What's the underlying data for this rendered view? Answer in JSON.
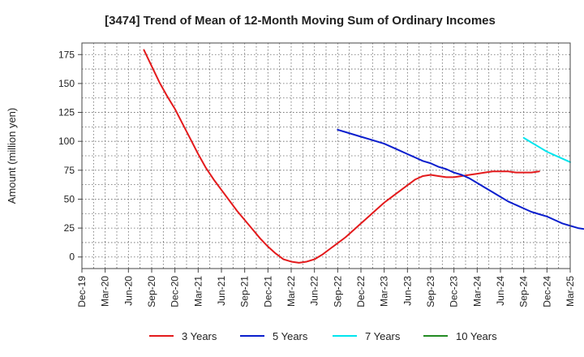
{
  "chart_data": {
    "type": "line",
    "title": "[3474]  Trend of Mean of 12-Month Moving Sum of Ordinary Incomes",
    "xlabel": "",
    "ylabel": "Amount (million yen)",
    "x_ticks": [
      "Dec-19",
      "Mar-20",
      "Jun-20",
      "Sep-20",
      "Dec-20",
      "Mar-21",
      "Jun-21",
      "Sep-21",
      "Dec-21",
      "Mar-22",
      "Jun-22",
      "Sep-22",
      "Dec-22",
      "Mar-23",
      "Jun-23",
      "Sep-23",
      "Dec-23",
      "Mar-24",
      "Jun-24",
      "Sep-24",
      "Dec-24",
      "Mar-25"
    ],
    "y_ticks": [
      0,
      25,
      50,
      75,
      100,
      125,
      150,
      175
    ],
    "ylim": [
      -10,
      185
    ],
    "grid": true,
    "legend_position": "bottom",
    "series": [
      {
        "name": "3 Years",
        "color": "#e31a1c",
        "points": [
          [
            8,
            179
          ],
          [
            9,
            165
          ],
          [
            10,
            151
          ],
          [
            11,
            139
          ],
          [
            12,
            128
          ],
          [
            13,
            115
          ],
          [
            14,
            102
          ],
          [
            15,
            89
          ],
          [
            16,
            77
          ],
          [
            17,
            67
          ],
          [
            18,
            58
          ],
          [
            19,
            49
          ],
          [
            20,
            40
          ],
          [
            21,
            32
          ],
          [
            22,
            24
          ],
          [
            23,
            16
          ],
          [
            24,
            9
          ],
          [
            25,
            3
          ],
          [
            26,
            -2
          ],
          [
            27,
            -4
          ],
          [
            28,
            -5
          ],
          [
            29,
            -4
          ],
          [
            30,
            -2
          ],
          [
            31,
            2
          ],
          [
            32,
            7
          ],
          [
            33,
            12
          ],
          [
            34,
            17
          ],
          [
            35,
            23
          ],
          [
            36,
            29
          ],
          [
            37,
            35
          ],
          [
            38,
            41
          ],
          [
            39,
            47
          ],
          [
            40,
            52
          ],
          [
            41,
            57
          ],
          [
            42,
            62
          ],
          [
            43,
            67
          ],
          [
            44,
            70
          ],
          [
            45,
            71
          ],
          [
            46,
            70
          ],
          [
            47,
            69
          ],
          [
            48,
            69
          ],
          [
            49,
            70
          ],
          [
            50,
            71
          ],
          [
            51,
            72
          ],
          [
            52,
            73
          ],
          [
            53,
            74
          ],
          [
            54,
            74
          ],
          [
            55,
            74
          ],
          [
            56,
            73
          ],
          [
            57,
            73
          ],
          [
            58,
            73
          ],
          [
            59,
            74
          ]
        ]
      },
      {
        "name": "5 Years",
        "color": "#0a1ecd",
        "points": [
          [
            33,
            110
          ],
          [
            34,
            108
          ],
          [
            35,
            106
          ],
          [
            36,
            104
          ],
          [
            37,
            102
          ],
          [
            38,
            100
          ],
          [
            39,
            98
          ],
          [
            40,
            95
          ],
          [
            41,
            92
          ],
          [
            42,
            89
          ],
          [
            43,
            86
          ],
          [
            44,
            83
          ],
          [
            45,
            81
          ],
          [
            46,
            78
          ],
          [
            47,
            76
          ],
          [
            48,
            73
          ],
          [
            49,
            71
          ],
          [
            50,
            68
          ],
          [
            51,
            64
          ],
          [
            52,
            60
          ],
          [
            53,
            56
          ],
          [
            54,
            52
          ],
          [
            55,
            48
          ],
          [
            56,
            45
          ],
          [
            57,
            42
          ],
          [
            58,
            39
          ],
          [
            59,
            37
          ],
          [
            60,
            35
          ],
          [
            61,
            32
          ],
          [
            62,
            29
          ],
          [
            63,
            27
          ],
          [
            64,
            25
          ],
          [
            65,
            24
          ],
          [
            66,
            24
          ]
        ]
      },
      {
        "name": "7 Years",
        "color": "#00e5ee",
        "points": [
          [
            57,
            103
          ],
          [
            58,
            99
          ],
          [
            59,
            95
          ],
          [
            60,
            91
          ],
          [
            61,
            88
          ],
          [
            62,
            85
          ],
          [
            63,
            82
          ]
        ]
      },
      {
        "name": "10 Years",
        "color": "#228b22",
        "points": []
      }
    ]
  }
}
